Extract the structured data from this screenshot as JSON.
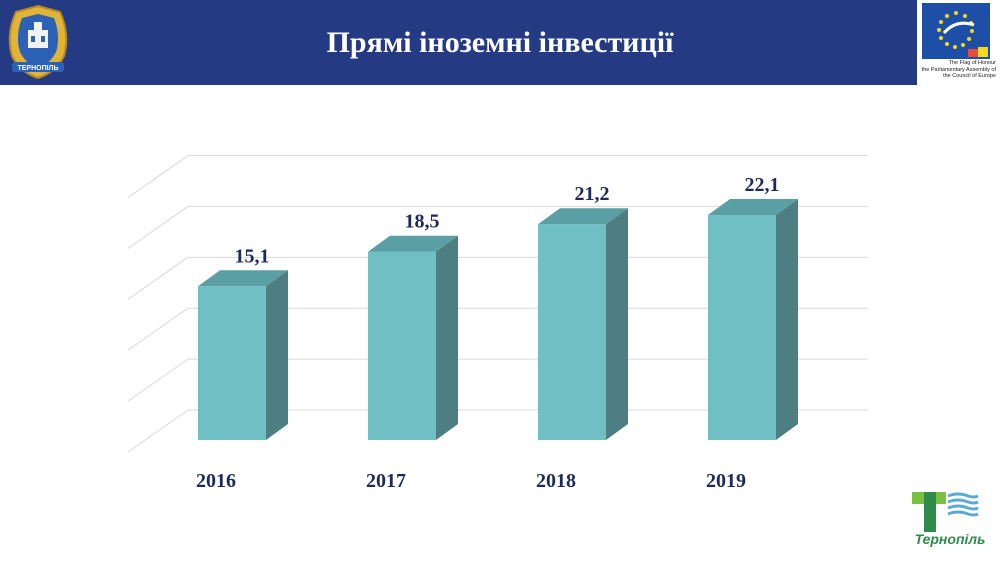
{
  "header": {
    "title": "Прямі іноземні інвестиції",
    "coat_text": "ТЕРНОПІЛЬ",
    "coe_caption": [
      "The Flag of Honour",
      "the Parliamentary Assembly of",
      "the Council of Europe"
    ]
  },
  "footer": {
    "city_name": "Тернопіль"
  },
  "colors": {
    "header_bg": "#243a83",
    "bar_front": "#6fbfc4",
    "bar_top": "#5a9fa3",
    "bar_side": "#4d7f82",
    "label": "#1f2a5a",
    "grid": "#d9d9d9",
    "logo_green": "#2e8b4a"
  },
  "chart_data": {
    "type": "bar",
    "categories": [
      "2016",
      "2017",
      "2018",
      "2019"
    ],
    "values": [
      15.1,
      18.5,
      21.2,
      22.1
    ],
    "value_labels": [
      "15,1",
      "18,5",
      "21,2",
      "22,1"
    ],
    "title": "",
    "xlabel": "",
    "ylabel": "",
    "ylim": [
      0,
      28
    ],
    "grid": true,
    "three_d": true
  }
}
